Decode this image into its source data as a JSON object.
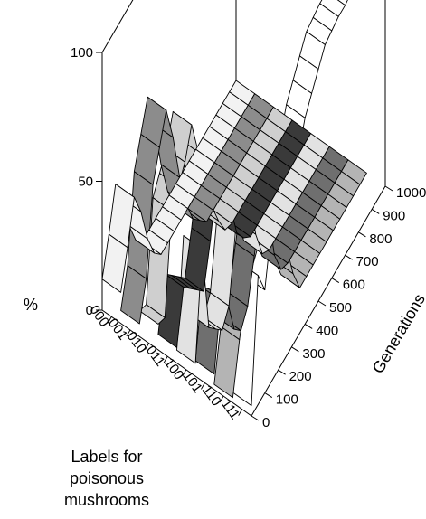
{
  "chart_data": {
    "type": "3d-ribbon",
    "title": "",
    "z_axis": {
      "label": "%",
      "ticks": [
        "0",
        "50",
        "100"
      ],
      "range": [
        0,
        100
      ]
    },
    "x_axis": {
      "label_lines": [
        "Labels for",
        "poisonous",
        "mushrooms"
      ],
      "categories": [
        "000",
        "001",
        "010",
        "011",
        "100",
        "101",
        "110",
        "111"
      ]
    },
    "y_axis": {
      "label": "Generations",
      "ticks": [
        "0",
        "100",
        "200",
        "300",
        "400",
        "500",
        "600",
        "700",
        "800",
        "900",
        "1000"
      ]
    },
    "series": [
      {
        "generation": 0,
        "values": [
          12,
          5,
          10,
          6,
          5,
          6,
          2,
          4
        ]
      },
      {
        "generation": 50,
        "values": [
          25,
          18,
          8,
          25,
          45,
          30,
          20,
          50
        ]
      },
      {
        "generation": 100,
        "values": [
          40,
          50,
          45,
          20,
          10,
          25,
          35,
          40
        ]
      },
      {
        "generation": 150,
        "values": [
          30,
          60,
          50,
          15,
          5,
          10,
          40,
          60
        ]
      },
      {
        "generation": 200,
        "values": [
          15,
          70,
          55,
          10,
          0,
          5,
          45,
          70
        ]
      },
      {
        "generation": 250,
        "values": [
          5,
          55,
          65,
          25,
          5,
          10,
          50,
          80
        ]
      },
      {
        "generation": 300,
        "values": [
          0,
          35,
          50,
          45,
          30,
          25,
          40,
          75
        ]
      },
      {
        "generation": 350,
        "values": [
          0,
          20,
          30,
          45,
          50,
          40,
          30,
          70
        ]
      },
      {
        "generation": 400,
        "values": [
          0,
          10,
          20,
          25,
          35,
          35,
          25,
          80
        ]
      },
      {
        "generation": 450,
        "values": [
          0,
          5,
          10,
          10,
          15,
          12,
          10,
          85
        ]
      },
      {
        "generation": 500,
        "values": [
          0,
          0,
          2,
          4,
          3,
          2,
          0,
          90
        ]
      },
      {
        "generation": 550,
        "values": [
          0,
          0,
          0,
          0,
          0,
          0,
          0,
          95
        ]
      },
      {
        "generation": 600,
        "values": [
          0,
          0,
          0,
          0,
          0,
          0,
          0,
          96
        ]
      },
      {
        "generation": 650,
        "values": [
          0,
          0,
          0,
          0,
          0,
          0,
          0,
          97
        ]
      },
      {
        "generation": 700,
        "values": [
          0,
          0,
          0,
          0,
          0,
          0,
          0,
          97
        ]
      },
      {
        "generation": 750,
        "values": [
          0,
          0,
          0,
          0,
          0,
          0,
          0,
          98
        ]
      },
      {
        "generation": 800,
        "values": [
          0,
          0,
          0,
          0,
          0,
          0,
          0,
          98
        ]
      },
      {
        "generation": 850,
        "values": [
          0,
          0,
          0,
          0,
          0,
          0,
          0,
          98
        ]
      },
      {
        "generation": 900,
        "values": [
          0,
          0,
          0,
          0,
          0,
          0,
          0,
          99
        ]
      },
      {
        "generation": 950,
        "values": [
          0,
          0,
          0,
          0,
          0,
          0,
          0,
          99
        ]
      },
      {
        "generation": 1000,
        "values": [
          0,
          0,
          0,
          0,
          0,
          0,
          0,
          99
        ]
      }
    ],
    "ribbon_shades": [
      "#f2f2f2",
      "#8c8c8c",
      "#cfcfcf",
      "#3a3a3a",
      "#e2e2e2",
      "#6f6f6f",
      "#b4b4b4",
      "#ffffff"
    ],
    "outline_color": "#000000"
  }
}
